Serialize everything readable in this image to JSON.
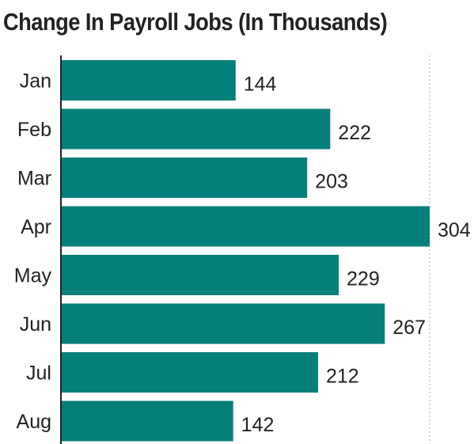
{
  "chart_data": {
    "type": "bar",
    "orientation": "horizontal",
    "title": "Change In Payroll Jobs (In Thousands)",
    "categories": [
      "Jan",
      "Feb",
      "Mar",
      "Apr",
      "May",
      "Jun",
      "Jul",
      "Aug"
    ],
    "values": [
      144,
      222,
      203,
      304,
      229,
      267,
      212,
      142
    ],
    "xlabel": "",
    "ylabel": "",
    "xlim": [
      0,
      304
    ],
    "grid": "vertical dotted line at end of range",
    "legend": "none",
    "bar_color": "#057f7a"
  }
}
